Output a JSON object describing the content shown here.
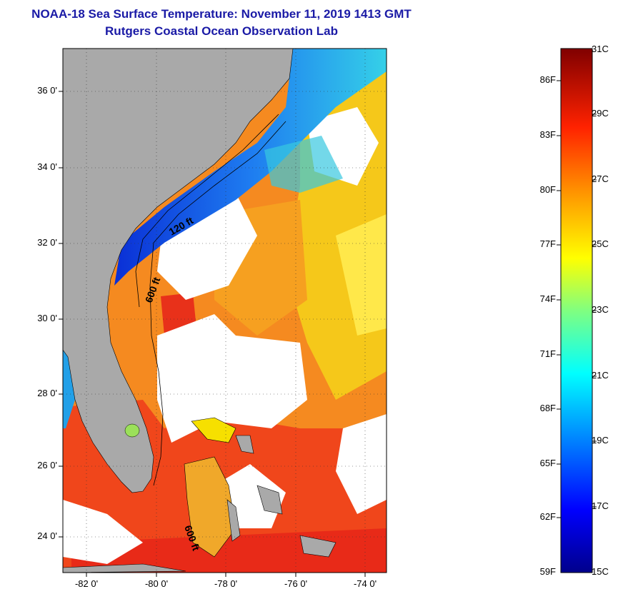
{
  "title": {
    "line1": "NOAA-18 Sea Surface Temperature:  November 11, 2019 1413 GMT",
    "line2": "Rutgers Coastal Ocean Observation Lab"
  },
  "map": {
    "lat_labels": [
      "36 0'",
      "34 0'",
      "32 0'",
      "30 0'",
      "28 0'",
      "26 0'",
      "24 0'"
    ],
    "lon_labels": [
      "-82 0'",
      "-80 0'",
      "-78 0'",
      "-76 0'",
      "-74 0'"
    ],
    "isobath_labels": [
      "120 ft",
      "600 ft",
      "600 ft"
    ]
  },
  "colorbar": {
    "fahrenheit_labels": [
      "86F",
      "83F",
      "80F",
      "77F",
      "74F",
      "71F",
      "68F",
      "65F",
      "62F",
      "59F"
    ],
    "celsius_labels": [
      "31C",
      "29C",
      "27C",
      "25C",
      "23C",
      "21C",
      "19C",
      "17C",
      "15C"
    ]
  },
  "colors": {
    "title": "#1a1aa6",
    "land": "#a9a9a9",
    "warm": "#f25a1c",
    "cold": "#0a2fd6"
  }
}
